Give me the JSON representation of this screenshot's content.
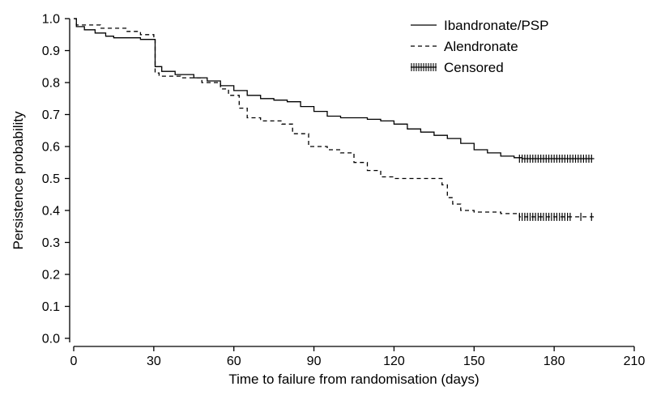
{
  "chart_data": {
    "type": "line",
    "xlabel": "Time to failure from randomisation (days)",
    "ylabel": "Persistence probability",
    "xlim": [
      0,
      210
    ],
    "ylim": [
      0,
      1.0
    ],
    "x_ticks": [
      "0",
      "30",
      "60",
      "90",
      "120",
      "150",
      "180",
      "210"
    ],
    "y_ticks": [
      "0.0",
      "0.1",
      "0.2",
      "0.3",
      "0.4",
      "0.5",
      "0.6",
      "0.7",
      "0.8",
      "0.9",
      "1.0"
    ],
    "legend": {
      "position": "top-right",
      "entries": [
        {
          "label": "Ibandronate/PSP",
          "style": "solid"
        },
        {
          "label": "Alendronate",
          "style": "dashed"
        },
        {
          "label": "Censored",
          "style": "censor-marks"
        }
      ]
    },
    "series": [
      {
        "name": "Ibandronate/PSP",
        "style": "solid",
        "points": [
          [
            0,
            1.0
          ],
          [
            1,
            0.975
          ],
          [
            4,
            0.965
          ],
          [
            8,
            0.955
          ],
          [
            12,
            0.945
          ],
          [
            15,
            0.94
          ],
          [
            20,
            0.94
          ],
          [
            25,
            0.935
          ],
          [
            30,
            0.935
          ],
          [
            30.5,
            0.85
          ],
          [
            33,
            0.835
          ],
          [
            38,
            0.825
          ],
          [
            45,
            0.815
          ],
          [
            50,
            0.805
          ],
          [
            55,
            0.79
          ],
          [
            60,
            0.775
          ],
          [
            65,
            0.76
          ],
          [
            70,
            0.75
          ],
          [
            75,
            0.745
          ],
          [
            80,
            0.74
          ],
          [
            85,
            0.725
          ],
          [
            90,
            0.71
          ],
          [
            95,
            0.695
          ],
          [
            100,
            0.69
          ],
          [
            110,
            0.685
          ],
          [
            115,
            0.68
          ],
          [
            120,
            0.67
          ],
          [
            125,
            0.655
          ],
          [
            130,
            0.645
          ],
          [
            135,
            0.635
          ],
          [
            140,
            0.625
          ],
          [
            145,
            0.61
          ],
          [
            150,
            0.59
          ],
          [
            155,
            0.58
          ],
          [
            160,
            0.57
          ],
          [
            165,
            0.565
          ],
          [
            168,
            0.562
          ],
          [
            195,
            0.562
          ]
        ],
        "censored_x": [
          167,
          168,
          169,
          170,
          171,
          172,
          173,
          174,
          175,
          176,
          177,
          178,
          179,
          180,
          181,
          182,
          183,
          184,
          185,
          186,
          187,
          188,
          189,
          190,
          191,
          192,
          193,
          194
        ]
      },
      {
        "name": "Alendronate",
        "style": "dashed",
        "points": [
          [
            0,
            1.0
          ],
          [
            1,
            0.98
          ],
          [
            10,
            0.97
          ],
          [
            20,
            0.96
          ],
          [
            25,
            0.95
          ],
          [
            30,
            0.94
          ],
          [
            30.5,
            0.83
          ],
          [
            32,
            0.82
          ],
          [
            40,
            0.815
          ],
          [
            48,
            0.8
          ],
          [
            55,
            0.78
          ],
          [
            58,
            0.76
          ],
          [
            62,
            0.72
          ],
          [
            65,
            0.69
          ],
          [
            70,
            0.68
          ],
          [
            78,
            0.67
          ],
          [
            82,
            0.64
          ],
          [
            88,
            0.6
          ],
          [
            95,
            0.59
          ],
          [
            100,
            0.58
          ],
          [
            105,
            0.55
          ],
          [
            110,
            0.525
          ],
          [
            115,
            0.505
          ],
          [
            120,
            0.5
          ],
          [
            130,
            0.5
          ],
          [
            135,
            0.5
          ],
          [
            138,
            0.48
          ],
          [
            140,
            0.44
          ],
          [
            142,
            0.42
          ],
          [
            145,
            0.4
          ],
          [
            150,
            0.395
          ],
          [
            160,
            0.39
          ],
          [
            167,
            0.38
          ],
          [
            195,
            0.38
          ]
        ],
        "censored_x": [
          167,
          168,
          169,
          170,
          171,
          172,
          173,
          174,
          175,
          176,
          177,
          178,
          179,
          180,
          181,
          182,
          183,
          184,
          185,
          186,
          190,
          194
        ]
      }
    ]
  }
}
